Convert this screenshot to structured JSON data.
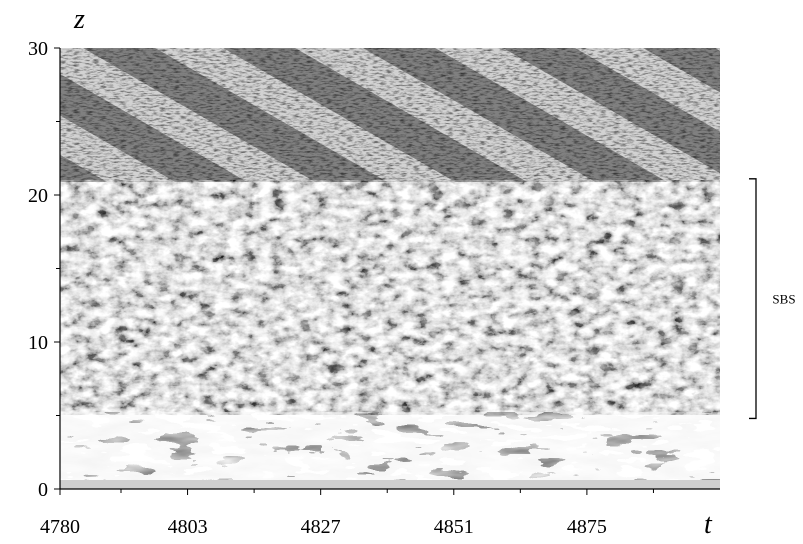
{
  "chart_data": {
    "type": "heatmap-image",
    "x_label": "t",
    "y_label": "z",
    "xlim": [
      4780,
      4899
    ],
    "xticks": [
      4780,
      4803,
      4827,
      4851,
      4875
    ],
    "xminorticks": [
      4791,
      4815,
      4839,
      4863,
      4887
    ],
    "ylim": [
      0,
      30
    ],
    "yticks": [
      0,
      10,
      20,
      30
    ],
    "yminorticks": [
      5,
      15,
      25
    ],
    "annotation": {
      "text": "SBS",
      "range": [
        4.8,
        21.1
      ]
    }
  }
}
